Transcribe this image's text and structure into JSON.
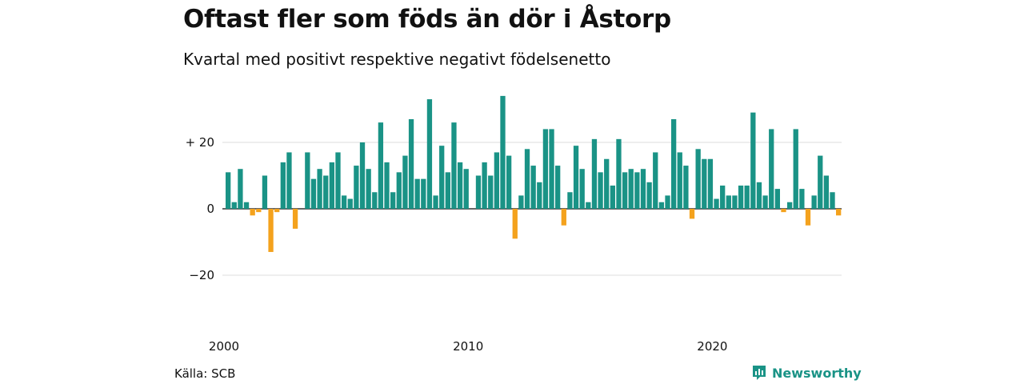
{
  "title": "Oftast fler som föds än dör i Åstorp",
  "subtitle": "Kvartal med positivt respektive negativt födelsenetto",
  "source": "Källa: SCB",
  "brand": {
    "name": "Newsworthy",
    "logo_icon": "newsworthy-bar-logo-icon"
  },
  "colors": {
    "positive": "#1a9386",
    "negative": "#f4a21d",
    "grid": "#dddddd",
    "zero_line": "#333333"
  },
  "chart_data": {
    "type": "bar",
    "start_year": 2000,
    "bars_per_year": 4,
    "ylim": [
      -30,
      35
    ],
    "y_ticks": [
      {
        "value": 20,
        "label": "+ 20"
      },
      {
        "value": 0,
        "label": "0"
      },
      {
        "value": -20,
        "label": "−20"
      }
    ],
    "x_ticks": [
      {
        "value": 2000,
        "label": "2000"
      },
      {
        "value": 2010,
        "label": "2010"
      },
      {
        "value": 2020,
        "label": "2020"
      }
    ],
    "grid": true,
    "values": [
      11,
      2,
      12,
      2,
      -2,
      -1,
      10,
      -13,
      -1,
      14,
      17,
      -6,
      0,
      17,
      9,
      12,
      10,
      14,
      17,
      4,
      3,
      13,
      20,
      12,
      5,
      26,
      14,
      5,
      11,
      16,
      27,
      9,
      9,
      33,
      4,
      19,
      11,
      26,
      14,
      12,
      0,
      10,
      14,
      10,
      17,
      34,
      16,
      -9,
      4,
      18,
      13,
      8,
      24,
      24,
      13,
      -5,
      5,
      19,
      12,
      2,
      21,
      11,
      15,
      7,
      21,
      11,
      12,
      11,
      12,
      8,
      17,
      2,
      4,
      27,
      17,
      13,
      -3,
      18,
      15,
      15,
      3,
      7,
      4,
      4,
      7,
      7,
      29,
      8,
      4,
      24,
      6,
      -1,
      2,
      24,
      6,
      -5,
      4,
      16,
      10,
      5,
      -2
    ]
  }
}
